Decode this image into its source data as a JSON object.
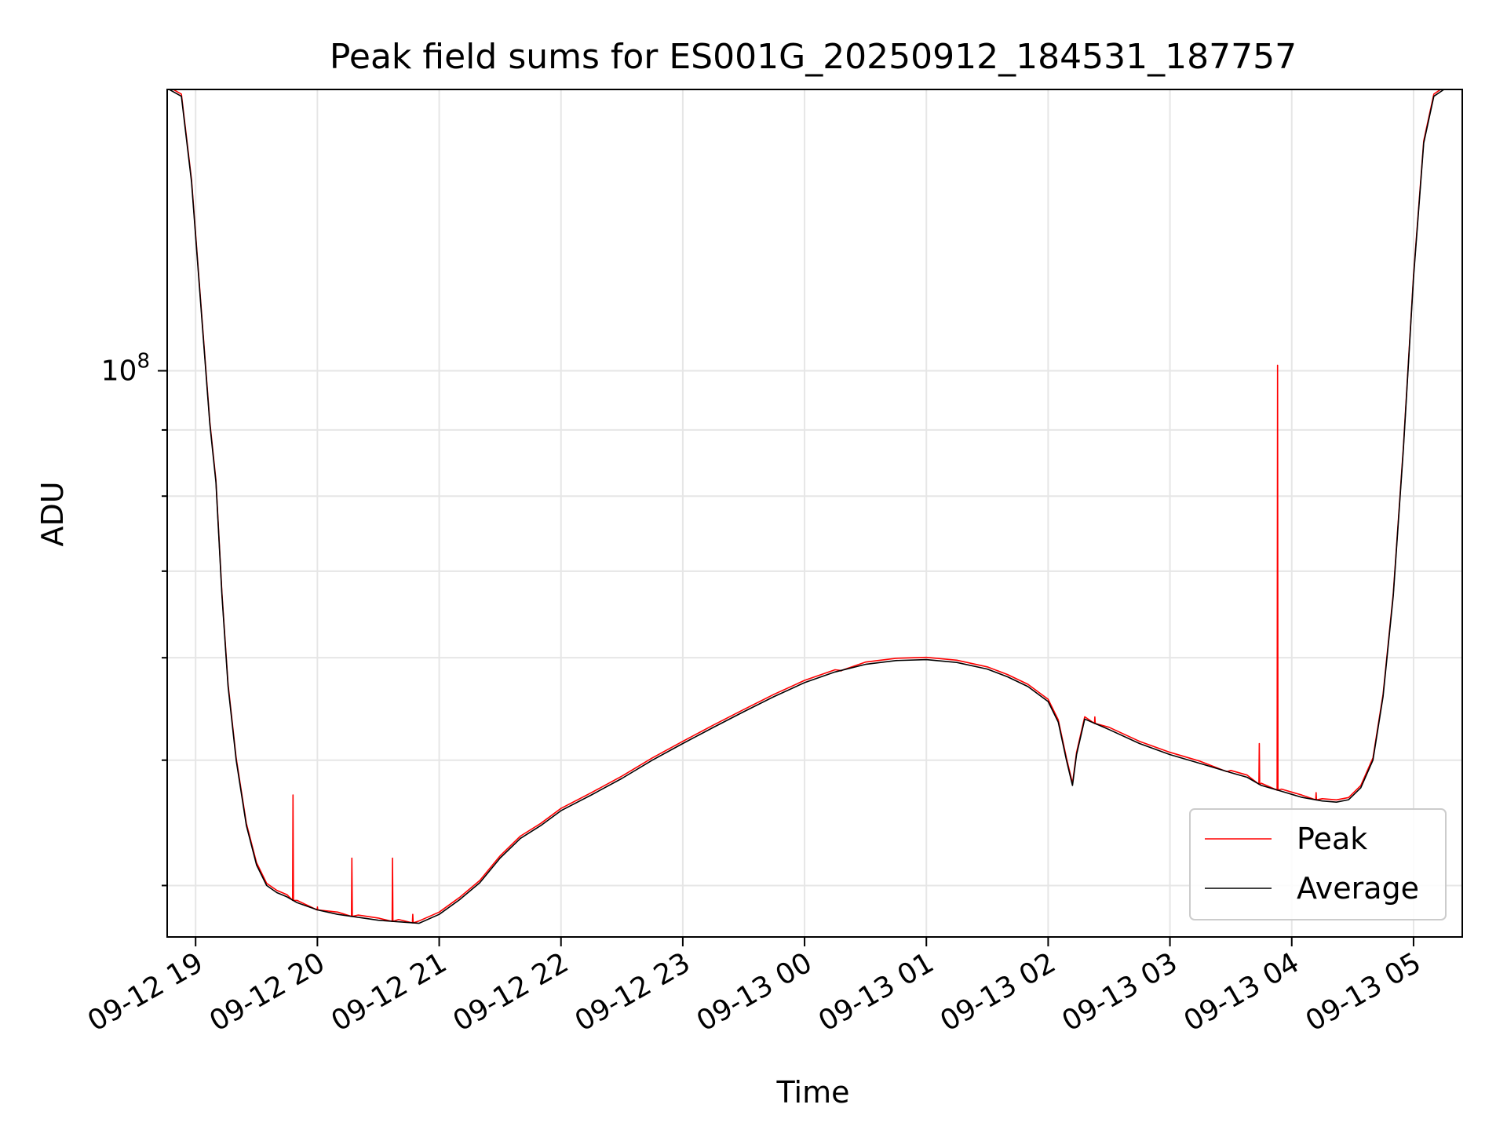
{
  "chart_data": {
    "type": "line",
    "title": "Peak field sums for ES001G_20250912_184531_187757",
    "xlabel": "Time",
    "ylabel": "ADU",
    "y_scale": "log",
    "ylim": [
      36500000,
      165000000
    ],
    "xlim": [
      "2025-09-12 18:46",
      "2025-09-13 05:24"
    ],
    "x_ticks": [
      "09-12 19",
      "09-12 20",
      "09-12 21",
      "09-12 22",
      "09-12 23",
      "09-13 00",
      "09-13 01",
      "09-13 02",
      "09-13 03",
      "09-13 04",
      "09-13 05"
    ],
    "y_tick_label": "10^8",
    "grid": true,
    "legend_position": "lower right",
    "colors": {
      "peak": "#ff0000",
      "average": "#000000",
      "grid": "#e6e6e6"
    },
    "series": [
      {
        "name": "Average",
        "x": [
          "2025-09-12 18:47",
          "2025-09-12 18:53",
          "2025-09-12 18:58",
          "2025-09-12 19:03",
          "2025-09-12 19:07",
          "2025-09-12 19:10",
          "2025-09-12 19:13",
          "2025-09-12 19:16",
          "2025-09-12 19:20",
          "2025-09-12 19:25",
          "2025-09-12 19:30",
          "2025-09-12 19:35",
          "2025-09-12 19:40",
          "2025-09-12 19:45",
          "2025-09-12 19:50",
          "2025-09-12 20:00",
          "2025-09-12 20:10",
          "2025-09-12 20:20",
          "2025-09-12 20:30",
          "2025-09-12 20:40",
          "2025-09-12 20:50",
          "2025-09-12 21:00",
          "2025-09-12 21:10",
          "2025-09-12 21:20",
          "2025-09-12 21:30",
          "2025-09-12 21:40",
          "2025-09-12 21:50",
          "2025-09-12 22:00",
          "2025-09-12 22:15",
          "2025-09-12 22:30",
          "2025-09-12 22:45",
          "2025-09-12 23:00",
          "2025-09-12 23:15",
          "2025-09-12 23:30",
          "2025-09-12 23:45",
          "2025-09-13 00:00",
          "2025-09-13 00:15",
          "2025-09-13 00:30",
          "2025-09-13 00:45",
          "2025-09-13 01:00",
          "2025-09-13 01:15",
          "2025-09-13 01:30",
          "2025-09-13 01:40",
          "2025-09-13 01:50",
          "2025-09-13 02:00",
          "2025-09-13 02:05",
          "2025-09-13 02:09",
          "2025-09-13 02:12",
          "2025-09-13 02:14",
          "2025-09-13 02:18",
          "2025-09-13 02:30",
          "2025-09-13 02:45",
          "2025-09-13 03:00",
          "2025-09-13 03:15",
          "2025-09-13 03:30",
          "2025-09-13 03:38",
          "2025-09-13 03:45",
          "2025-09-13 03:55",
          "2025-09-13 04:05",
          "2025-09-13 04:15",
          "2025-09-13 04:22",
          "2025-09-13 04:28",
          "2025-09-13 04:34",
          "2025-09-13 04:40",
          "2025-09-13 04:45",
          "2025-09-13 04:50",
          "2025-09-13 04:55",
          "2025-09-13 05:00",
          "2025-09-13 05:05",
          "2025-09-13 05:10",
          "2025-09-13 05:15"
        ],
        "y": [
          165000000,
          163000000,
          140000000,
          110000000,
          91000000,
          82000000,
          67000000,
          57000000,
          50000000,
          44500000,
          41500000,
          40000000,
          39500000,
          39200000,
          38800000,
          38300000,
          38000000,
          37800000,
          37600000,
          37500000,
          37400000,
          38000000,
          39000000,
          40200000,
          42000000,
          43500000,
          44500000,
          45700000,
          47000000,
          48400000,
          50000000,
          51500000,
          53000000,
          54500000,
          56000000,
          57400000,
          58500000,
          59300000,
          59700000,
          59800000,
          59500000,
          58800000,
          58000000,
          57000000,
          55500000,
          53500000,
          50000000,
          47800000,
          50500000,
          53800000,
          52800000,
          51500000,
          50500000,
          49700000,
          48900000,
          48500000,
          47800000,
          47300000,
          46800000,
          46500000,
          46400000,
          46600000,
          47600000,
          50000000,
          56000000,
          67000000,
          87000000,
          118000000,
          150000000,
          163000000,
          165000000
        ]
      },
      {
        "name": "Peak",
        "spikes": [
          {
            "x": "2025-09-12 19:48",
            "y": 47000000
          },
          {
            "x": "2025-09-12 20:00",
            "y": 38500000
          },
          {
            "x": "2025-09-12 20:17",
            "y": 42000000
          },
          {
            "x": "2025-09-12 20:37",
            "y": 42000000
          },
          {
            "x": "2025-09-12 20:47",
            "y": 38000000
          },
          {
            "x": "2025-09-13 00:18",
            "y": 58600000
          },
          {
            "x": "2025-09-13 02:23",
            "y": 54000000
          },
          {
            "x": "2025-09-13 03:28",
            "y": 49000000
          },
          {
            "x": "2025-09-13 03:44",
            "y": 51500000
          },
          {
            "x": "2025-09-13 03:53",
            "y": 101000000
          },
          {
            "x": "2025-09-13 04:12",
            "y": 47200000
          }
        ]
      }
    ]
  }
}
